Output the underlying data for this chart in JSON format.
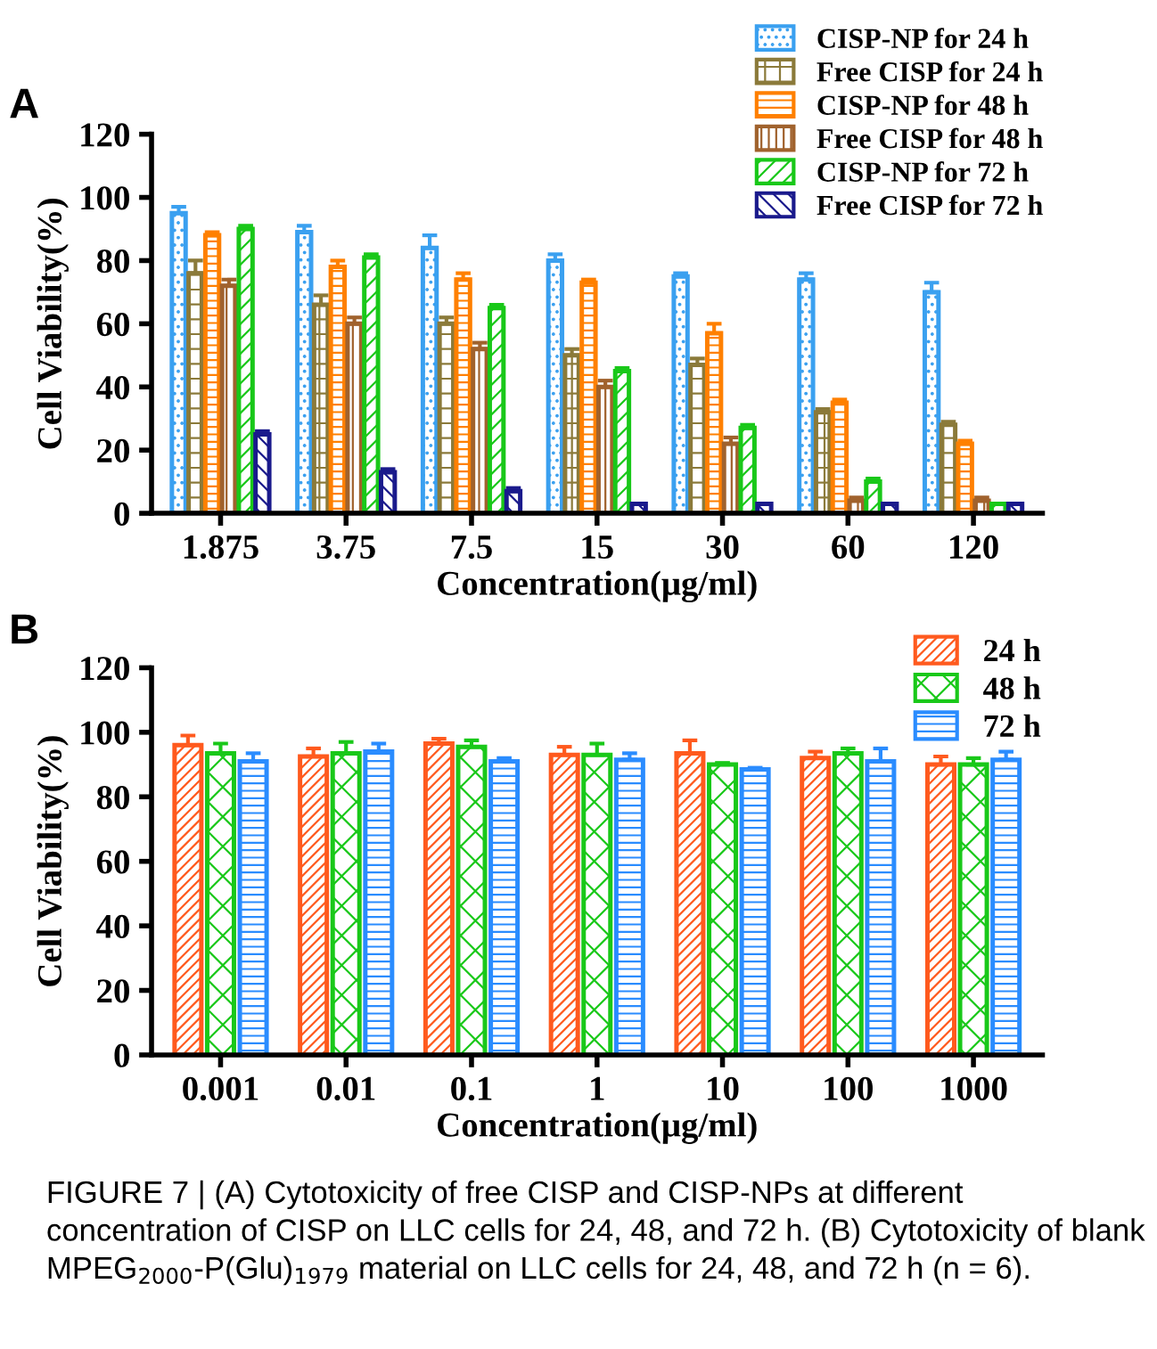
{
  "chart_data": [
    {
      "type": "bar",
      "title": "A",
      "xlabel": "Concentration(μg/ml)",
      "ylabel": "Cell Viability(%)",
      "categories": [
        "1.875",
        "3.75",
        "7.5",
        "15",
        "30",
        "60",
        "120"
      ],
      "ylim": [
        0,
        120
      ],
      "yticks": [
        0,
        20,
        40,
        60,
        80,
        100,
        120
      ],
      "grid": false,
      "legend": "top right",
      "series": [
        {
          "name": "CISP-NP for 24 h",
          "color": "#3aa0f0",
          "values": [
            95,
            89,
            84,
            80,
            75,
            74,
            70
          ],
          "errors": [
            2,
            2,
            4,
            2,
            1,
            2,
            3
          ]
        },
        {
          "name": "Free CISP for 24 h",
          "color": "#8b7a3a",
          "values": [
            76,
            66,
            60,
            50,
            47,
            32,
            28
          ],
          "errors": [
            4,
            3,
            2,
            2,
            2,
            1,
            1
          ]
        },
        {
          "name": "CISP-NP for 48 h",
          "color": "#ff8000",
          "values": [
            88,
            78,
            74,
            73,
            57,
            35,
            22
          ],
          "errors": [
            1,
            2,
            2,
            1,
            3,
            1,
            1
          ]
        },
        {
          "name": "Free CISP for 48 h",
          "color": "#a0622d",
          "values": [
            72,
            60,
            52,
            40,
            22,
            4,
            4
          ],
          "errors": [
            2,
            2,
            2,
            2,
            2,
            1,
            1
          ]
        },
        {
          "name": "CISP-NP for 72 h",
          "color": "#19c819",
          "values": [
            90,
            81,
            65,
            45,
            27,
            10,
            3
          ],
          "errors": [
            1,
            1,
            1,
            1,
            1,
            1,
            null
          ]
        },
        {
          "name": "Free CISP for 72 h",
          "color": "#1a1a8c",
          "values": [
            25,
            13,
            7,
            3,
            3,
            3,
            3
          ],
          "errors": [
            1,
            1,
            1,
            null,
            null,
            null,
            null
          ]
        }
      ]
    },
    {
      "type": "bar",
      "title": "B",
      "xlabel": "Concentration(μg/ml)",
      "ylabel": "Cell Viability(%)",
      "categories": [
        "0.001",
        "0.01",
        "0.1",
        "1",
        "10",
        "100",
        "1000"
      ],
      "ylim": [
        0,
        120
      ],
      "yticks": [
        0,
        20,
        40,
        60,
        80,
        100,
        120
      ],
      "grid": false,
      "legend": "top right",
      "series": [
        {
          "name": "24 h",
          "color": "#ff5a1e",
          "values": [
            96,
            92.5,
            96.5,
            93,
            93.5,
            92,
            90
          ],
          "errors": [
            3,
            2.5,
            1.5,
            2.5,
            4,
            2,
            2.5
          ]
        },
        {
          "name": "48 h",
          "color": "#19c819",
          "values": [
            93.5,
            93.5,
            95.5,
            93,
            90,
            93.5,
            90
          ],
          "errors": [
            3,
            3.5,
            2,
            3.5,
            0.5,
            1.5,
            2
          ]
        },
        {
          "name": "72 h",
          "color": "#2a8cff",
          "values": [
            91,
            94,
            91,
            91.5,
            88.5,
            91,
            91.5
          ],
          "errors": [
            2.5,
            2.5,
            1,
            2,
            0.5,
            4,
            2.5
          ]
        }
      ],
      "annotations": [
        "FIGURE 7 | (A) Cytotoxicity of free CISP and CISP-NPs at different concentration of CISP on LLC cells for 24, 48, and 72 h. (B) Cytotoxicity of blank MPEG$_{2000}$-P(Glu)$_{1979}$ material on LLC cells for 24, 48, and 72 h (n = 6)."
      ]
    }
  ]
}
